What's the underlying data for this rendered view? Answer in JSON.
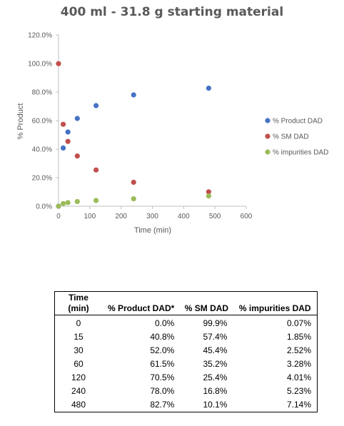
{
  "chart_data": {
    "type": "scatter",
    "title": "400 ml - 31.8 g starting material",
    "xlabel": "Time (min)",
    "ylabel": "% Product",
    "xlim": [
      0,
      600
    ],
    "ylim": [
      0,
      120
    ],
    "x_ticks": [
      "0",
      "100",
      "200",
      "300",
      "400",
      "500",
      "600"
    ],
    "y_ticks": [
      "0.0%",
      "20.0%",
      "40.0%",
      "60.0%",
      "80.0%",
      "100.0%",
      "120.0%"
    ],
    "legend_position": "right",
    "grid": false,
    "x": [
      0,
      15,
      30,
      60,
      120,
      240,
      480
    ],
    "series": [
      {
        "name": "% Product DAD",
        "color": "#4472C4",
        "values": [
          0.0,
          40.8,
          52.0,
          61.5,
          70.5,
          78.0,
          82.7
        ]
      },
      {
        "name": "% SM DAD",
        "color": "#C0504D",
        "values": [
          99.9,
          57.4,
          45.4,
          35.2,
          25.4,
          16.8,
          10.1
        ]
      },
      {
        "name": "% impurities DAD",
        "color": "#9BBB59",
        "values": [
          0.07,
          1.85,
          2.52,
          3.28,
          4.01,
          5.23,
          7.14
        ]
      }
    ]
  },
  "table": {
    "headers": [
      [
        "Time",
        "(min)"
      ],
      [
        "% Product DAD*"
      ],
      [
        "% SM DAD"
      ],
      [
        "% impurities DAD"
      ]
    ],
    "rows": [
      [
        "0",
        "0.0%",
        "99.9%",
        "0.07%"
      ],
      [
        "15",
        "40.8%",
        "57.4%",
        "1.85%"
      ],
      [
        "30",
        "52.0%",
        "45.4%",
        "2.52%"
      ],
      [
        "60",
        "61.5%",
        "35.2%",
        "3.28%"
      ],
      [
        "120",
        "70.5%",
        "25.4%",
        "4.01%"
      ],
      [
        "240",
        "78.0%",
        "16.8%",
        "5.23%"
      ],
      [
        "480",
        "82.7%",
        "10.1%",
        "7.14%"
      ]
    ]
  }
}
